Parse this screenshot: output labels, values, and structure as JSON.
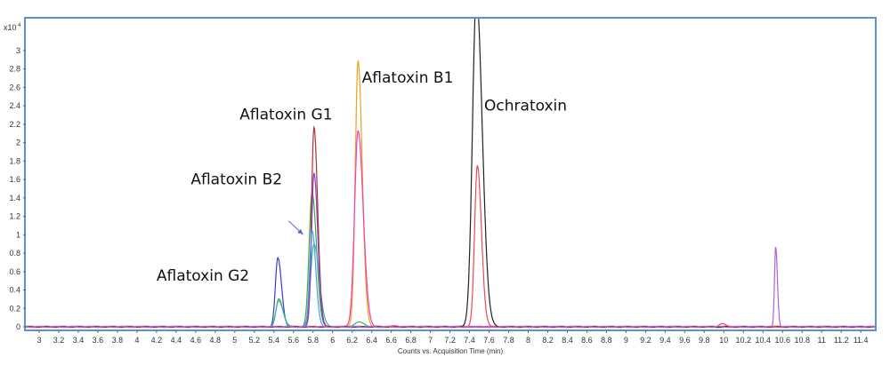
{
  "chart_data": {
    "type": "line",
    "title": "",
    "xlabel": "Counts vs. Acquisition Time (min)",
    "ylabel": "",
    "y_multiplier_label": "x10",
    "y_multiplier_exponent": "4",
    "xlim": [
      2.85,
      11.55
    ],
    "ylim": [
      -0.05,
      3.15
    ],
    "xticks": [
      "3",
      "3.2",
      "3.4",
      "3.6",
      "3.8",
      "4",
      "4.2",
      "4.4",
      "4.6",
      "4.8",
      "5",
      "5.2",
      "5.4",
      "5.6",
      "5.8",
      "6",
      "6.2",
      "6.4",
      "6.6",
      "6.8",
      "7",
      "7.2",
      "7.4",
      "7.6",
      "7.8",
      "8",
      "8.2",
      "8.4",
      "8.6",
      "8.8",
      "9",
      "9.2",
      "9.4",
      "9.6",
      "9.8",
      "10",
      "10.2",
      "10.4",
      "10.6",
      "10.8",
      "11",
      "11.2",
      "11.4"
    ],
    "yticks": [
      "0",
      "0.2",
      "0.4",
      "0.6",
      "0.8",
      "1",
      "1.2",
      "1.4",
      "1.6",
      "1.8",
      "2",
      "2.2",
      "2.4",
      "2.6",
      "2.8",
      "3"
    ],
    "grid": false,
    "frame_color": "#5b8fd9",
    "series": [
      {
        "color": "#3a3ad0",
        "peaks": [
          [
            5.44,
            0.75,
            0.025
          ]
        ]
      },
      {
        "color": "#3fae3f",
        "peaks": [
          [
            5.45,
            0.3,
            0.028
          ],
          [
            5.79,
            1.45,
            0.03
          ],
          [
            6.26,
            0.05,
            0.04
          ]
        ]
      },
      {
        "color": "#40b4a8",
        "peaks": [
          [
            5.45,
            0.28,
            0.03
          ],
          [
            5.81,
            0.9,
            0.035
          ]
        ]
      },
      {
        "color": "#b03040",
        "peaks": [
          [
            5.81,
            2.17,
            0.025
          ]
        ]
      },
      {
        "color": "#8a3fc0",
        "peaks": [
          [
            5.81,
            1.65,
            0.025
          ],
          [
            5.83,
            0.03,
            0.02
          ]
        ]
      },
      {
        "color": "#4aa0e8",
        "peaks": [
          [
            5.79,
            1.05,
            0.025
          ]
        ]
      },
      {
        "color": "#f0a020",
        "peaks": [
          [
            6.26,
            2.88,
            0.028
          ],
          [
            6.31,
            0.04,
            0.03
          ]
        ]
      },
      {
        "color": "#f040b0",
        "peaks": [
          [
            6.26,
            2.13,
            0.035
          ],
          [
            6.6,
            0.01,
            0.03
          ]
        ]
      },
      {
        "color": "#222222",
        "peaks": [
          [
            7.47,
            3.6,
            0.04
          ]
        ]
      },
      {
        "color": "#f04858",
        "peaks": [
          [
            7.48,
            1.75,
            0.028
          ],
          [
            9.98,
            0.03,
            0.03
          ]
        ]
      },
      {
        "color": "#b060d0",
        "peaks": [
          [
            10.53,
            0.87,
            0.012
          ]
        ]
      }
    ],
    "annotations": [
      {
        "text": "Aflatoxin G2",
        "x": 4.2,
        "y": 0.5
      },
      {
        "text": "Aflatoxin B2",
        "x": 4.55,
        "y": 1.55
      },
      {
        "text": "Aflatoxin G1",
        "x": 5.05,
        "y": 2.25
      },
      {
        "text": "Aflatoxin B1",
        "x": 6.3,
        "y": 2.65
      },
      {
        "text": "Ochratoxin",
        "x": 7.55,
        "y": 2.35
      }
    ],
    "arrow": {
      "from": [
        5.55,
        1.15
      ],
      "to": [
        5.7,
        1.0
      ],
      "color": "#5070c8"
    }
  }
}
